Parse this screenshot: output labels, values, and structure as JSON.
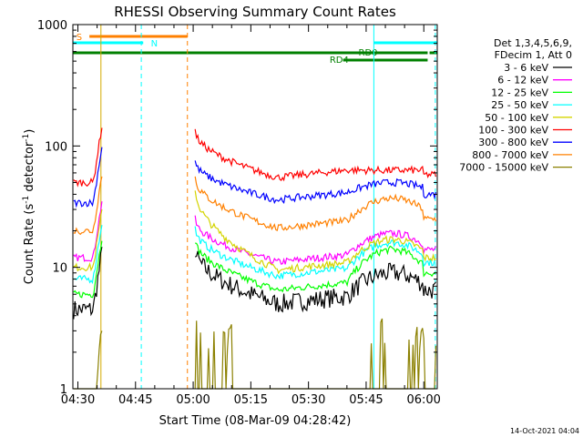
{
  "chart_data": {
    "type": "line",
    "title": "RHESSI Observing Summary Count Rates",
    "xlabel": "Start Time (08-Mar-09 04:28:42)",
    "ylabel_main": "Count Rate (s",
    "ylabel_sup1": "-1",
    "ylabel_mid": " detector",
    "ylabel_sup2": "-1",
    "ylabel_end": ")",
    "yscale": "log",
    "ylim": [
      1,
      1000
    ],
    "xlim_minutes": [
      268.7,
      363.5
    ],
    "x_ticks": [
      {
        "t": 270,
        "label": "04:30"
      },
      {
        "t": 285,
        "label": "04:45"
      },
      {
        "t": 300,
        "label": "05:00"
      },
      {
        "t": 315,
        "label": "05:15"
      },
      {
        "t": 330,
        "label": "05:30"
      },
      {
        "t": 345,
        "label": "05:45"
      },
      {
        "t": 360,
        "label": "06:00"
      }
    ],
    "y_ticks": [
      {
        "v": 1,
        "label": "1"
      },
      {
        "v": 10,
        "label": "10"
      },
      {
        "v": 100,
        "label": "100"
      },
      {
        "v": 1000,
        "label": "1000"
      }
    ],
    "legend_header": [
      "Det 1,3,4,5,6,9,",
      "FDecim 1, Att 0"
    ],
    "series": [
      {
        "name": "3 - 6 keV",
        "color": "#000000",
        "pre": 4.5,
        "start": 14,
        "mid": 5,
        "arcpeak": 9,
        "end": 6.5
      },
      {
        "name": "6 - 12 keV",
        "color": "#ff00ff",
        "pre": 12,
        "start": 25,
        "mid": 11,
        "arcpeak": 19,
        "end": 14
      },
      {
        "name": "12 - 25 keV",
        "color": "#00ff00",
        "pre": 6,
        "start": 17,
        "mid": 6.5,
        "arcpeak": 14,
        "end": 9
      },
      {
        "name": "25 - 50 keV",
        "color": "#00ffff",
        "pre": 8,
        "start": 21,
        "mid": 8.5,
        "arcpeak": 16,
        "end": 11
      },
      {
        "name": "50 - 100 keV",
        "color": "#d4d400",
        "pre": 10,
        "start": 45,
        "mid": 9.5,
        "arcpeak": 17,
        "end": 12
      },
      {
        "name": "100 - 300 keV",
        "color": "#ff0000",
        "pre": 50,
        "start": 135,
        "mid": 55,
        "arcpeak": 63,
        "end": 58
      },
      {
        "name": "300 - 800 keV",
        "color": "#0000ff",
        "pre": 34,
        "start": 75,
        "mid": 36,
        "arcpeak": 50,
        "end": 40
      },
      {
        "name": "800 - 7000 keV",
        "color": "#ff8000",
        "pre": 20,
        "start": 55,
        "mid": 21,
        "arcpeak": 37,
        "end": 25
      },
      {
        "name": "7000 - 15000 keV",
        "color": "#8b8000",
        "pre": 1,
        "start": 4,
        "mid": 1,
        "arcpeak": 2,
        "end": 1
      }
    ],
    "saa_band": {
      "label": "S",
      "color": "#ff8000",
      "t0": 273,
      "t1": 298.5
    },
    "night_bands": [
      {
        "label": "N",
        "color": "#00ffff",
        "t0": 268.7,
        "t1": 287
      },
      {
        "label": "",
        "color": "#00ffff",
        "t0": 347,
        "t1": 363.5
      }
    ],
    "decim_bands": [
      {
        "label": "RD0",
        "color": "#008000",
        "t0": 268.7,
        "t1": 361
      },
      {
        "label": "RD4",
        "color": "#008000",
        "t0": 339,
        "t1": 361
      }
    ],
    "vlines": [
      {
        "t": 268.7,
        "color": "#00ffff",
        "dash": false
      },
      {
        "t": 276,
        "color": "#d4aa00",
        "dash": false
      },
      {
        "t": 286.5,
        "color": "#00ffff",
        "dash": true
      },
      {
        "t": 298.5,
        "color": "#ff8000",
        "dash": true
      },
      {
        "t": 347,
        "color": "#00ffff",
        "dash": false
      },
      {
        "t": 363,
        "color": "#00ffff",
        "dash": true
      }
    ],
    "gap": [
      276.3,
      300.5
    ],
    "timestamp": "14-Oct-2021 04:04"
  }
}
